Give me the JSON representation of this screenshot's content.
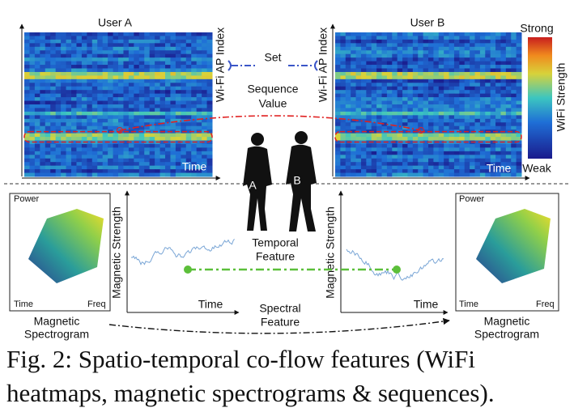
{
  "figure": {
    "user_a": {
      "title": "User A",
      "y_label": "Wi-Fi AP Index",
      "x_label": "Time"
    },
    "user_b": {
      "title": "User B",
      "y_label": "Wi-Fi AP Index",
      "x_label": "Time"
    },
    "set_label": "Set",
    "sequence_label": [
      "Sequence",
      "Value"
    ],
    "colorbar": {
      "high": "Strong",
      "title": "WiFi Strength",
      "low": "Weak"
    },
    "persons": [
      "A",
      "B"
    ],
    "left_spectrogram": {
      "z_label": "Power",
      "x_label": "Time",
      "y_label": "Freq",
      "caption": [
        "Magnetic",
        "Spectrogram"
      ]
    },
    "left_sequence": {
      "y_label": "Magnetic Strength",
      "x_label": "Time"
    },
    "right_sequence": {
      "y_label": "Magnetic Strength",
      "x_label": "Time"
    },
    "right_spectrogram": {
      "z_label": "Power",
      "x_label": "Time",
      "y_label": "Freq",
      "caption": [
        "Magnetic",
        "Spectrogram"
      ]
    },
    "temporal_label": [
      "Temporal",
      "Feature"
    ],
    "spectral_label": [
      "Spectral",
      "Feature"
    ]
  },
  "caption": [
    "Fig. 2: Spatio-temporal co-flow features (WiFi",
    "heatmaps, magnetic spectrograms & sequences)."
  ]
}
